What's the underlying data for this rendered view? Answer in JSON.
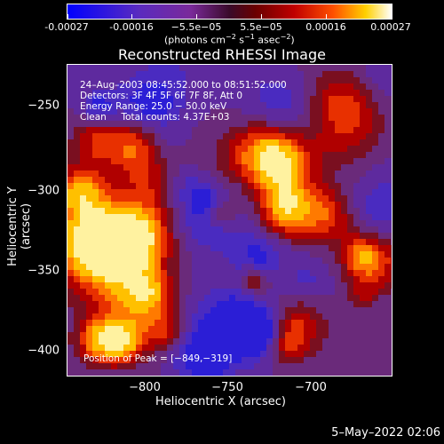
{
  "colorbar": {
    "tick_labels": [
      "-0.00027",
      "-0.00016",
      "−5.5e−05",
      "5.5e−05",
      "0.00016",
      "0.00027"
    ],
    "units_prefix": "(photons cm",
    "units_exp1": "−2",
    "units_mid1": " s",
    "units_exp2": "−1",
    "units_mid2": " asec",
    "units_exp3": "−2",
    "units_suffix": ")"
  },
  "title": "Reconstructed RHESSI Image",
  "annotations": {
    "line1": "24–Aug–2003 08:45:52.000 to 08:51:52.000",
    "line2": "Detectors: 3F 4F 5F 6F 7F 8F, Att 0",
    "line3": "Energy Range: 25.0 − 50.0 keV",
    "line4": "Clean     Total counts: 4.37E+03",
    "peak": "Position of Peak = [−849,−319]"
  },
  "axes": {
    "xlabel": "Heliocentric X (arcsec)",
    "ylabel": "Heliocentric Y (arcsec)",
    "xticks": [
      "−800",
      "−750",
      "−700"
    ],
    "yticks": [
      "−250",
      "−300",
      "−350",
      "−400"
    ]
  },
  "footer_date": "5–May–2022 02:06"
}
